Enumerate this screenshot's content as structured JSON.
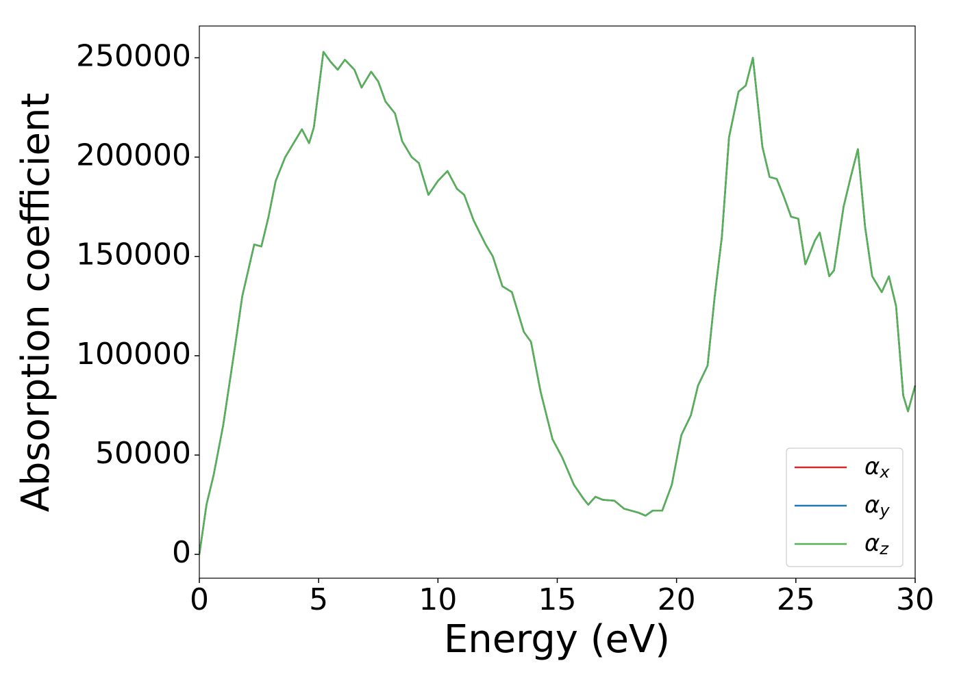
{
  "chart_data": {
    "type": "line",
    "x_label": "Energy (eV)",
    "y_label": "Absorption coefficient",
    "x": [
      0,
      0.3,
      0.6,
      1,
      1.5,
      1.8,
      2.3,
      2.6,
      2.9,
      3.2,
      3.6,
      4.0,
      4.3,
      4.6,
      4.8,
      5.2,
      5.5,
      5.8,
      6.1,
      6.5,
      6.8,
      7.2,
      7.5,
      7.8,
      8.2,
      8.5,
      8.9,
      9.2,
      9.6,
      10.0,
      10.4,
      10.8,
      11.1,
      11.5,
      12.0,
      12.3,
      12.7,
      13.1,
      13.6,
      13.9,
      14.3,
      14.8,
      15.2,
      15.7,
      16.1,
      16.3,
      16.6,
      16.9,
      17.4,
      17.8,
      18.4,
      18.7,
      19.0,
      19.4,
      19.8,
      20.2,
      20.6,
      20.9,
      21.3,
      21.6,
      21.9,
      22.2,
      22.6,
      22.9,
      23.2,
      23.6,
      23.9,
      24.2,
      24.5,
      24.8,
      25.1,
      25.4,
      25.8,
      26.0,
      26.4,
      26.6,
      27.0,
      27.3,
      27.6,
      27.9,
      28.2,
      28.6,
      28.9,
      29.2,
      29.5,
      29.7,
      30.0
    ],
    "series": [
      {
        "name": "αx",
        "color": "#d62728",
        "values": [
          0,
          25000,
          40000,
          65000,
          105000,
          130000,
          156000,
          155000,
          170000,
          188000,
          200000,
          208000,
          214000,
          207000,
          215000,
          253000,
          248000,
          244000,
          249000,
          244000,
          235000,
          243000,
          238000,
          228000,
          222000,
          208000,
          200000,
          197000,
          181000,
          188000,
          193000,
          184000,
          181000,
          168000,
          156000,
          150000,
          135000,
          132000,
          112000,
          107000,
          82000,
          58000,
          49000,
          35000,
          28000,
          25000,
          29000,
          27500,
          27000,
          23000,
          21000,
          19500,
          22000,
          22000,
          35000,
          60000,
          70000,
          85000,
          95000,
          130000,
          160000,
          210000,
          233000,
          236000,
          250000,
          205000,
          190000,
          189000,
          180000,
          170000,
          169000,
          146000,
          158000,
          162000,
          140000,
          143000,
          175000,
          190000,
          204000,
          165000,
          140000,
          132000,
          140000,
          125000,
          80000,
          72000,
          85000
        ]
      },
      {
        "name": "αy",
        "color": "#1f77b4",
        "values": [
          0,
          25000,
          40000,
          65000,
          105000,
          130000,
          156000,
          155000,
          170000,
          188000,
          200000,
          208000,
          214000,
          207000,
          215000,
          253000,
          248000,
          244000,
          249000,
          244000,
          235000,
          243000,
          238000,
          228000,
          222000,
          208000,
          200000,
          197000,
          181000,
          188000,
          193000,
          184000,
          181000,
          168000,
          156000,
          150000,
          135000,
          132000,
          112000,
          107000,
          82000,
          58000,
          49000,
          35000,
          28000,
          25000,
          29000,
          27500,
          27000,
          23000,
          21000,
          19500,
          22000,
          22000,
          35000,
          60000,
          70000,
          85000,
          95000,
          130000,
          160000,
          210000,
          233000,
          236000,
          250000,
          205000,
          190000,
          189000,
          180000,
          170000,
          169000,
          146000,
          158000,
          162000,
          140000,
          143000,
          175000,
          190000,
          204000,
          165000,
          140000,
          132000,
          140000,
          125000,
          80000,
          72000,
          85000
        ]
      },
      {
        "name": "αz",
        "color": "#55b155",
        "values": [
          0,
          25000,
          40000,
          65000,
          105000,
          130000,
          156000,
          155000,
          170000,
          188000,
          200000,
          208000,
          214000,
          207000,
          215000,
          253000,
          248000,
          244000,
          249000,
          244000,
          235000,
          243000,
          238000,
          228000,
          222000,
          208000,
          200000,
          197000,
          181000,
          188000,
          193000,
          184000,
          181000,
          168000,
          156000,
          150000,
          135000,
          132000,
          112000,
          107000,
          82000,
          58000,
          49000,
          35000,
          28000,
          25000,
          29000,
          27500,
          27000,
          23000,
          21000,
          19500,
          22000,
          22000,
          35000,
          60000,
          70000,
          85000,
          95000,
          130000,
          160000,
          210000,
          233000,
          236000,
          250000,
          205000,
          190000,
          189000,
          180000,
          170000,
          169000,
          146000,
          158000,
          162000,
          140000,
          143000,
          175000,
          190000,
          204000,
          165000,
          140000,
          132000,
          140000,
          125000,
          80000,
          72000,
          85000
        ]
      }
    ],
    "xlim": [
      0,
      30
    ],
    "xticks": [
      0,
      5,
      10,
      15,
      20,
      25,
      30
    ],
    "ylim": [
      -12000,
      266000
    ],
    "yticks": [
      0,
      50000,
      100000,
      150000,
      200000,
      250000
    ],
    "grid": false,
    "legend": "lower right"
  }
}
